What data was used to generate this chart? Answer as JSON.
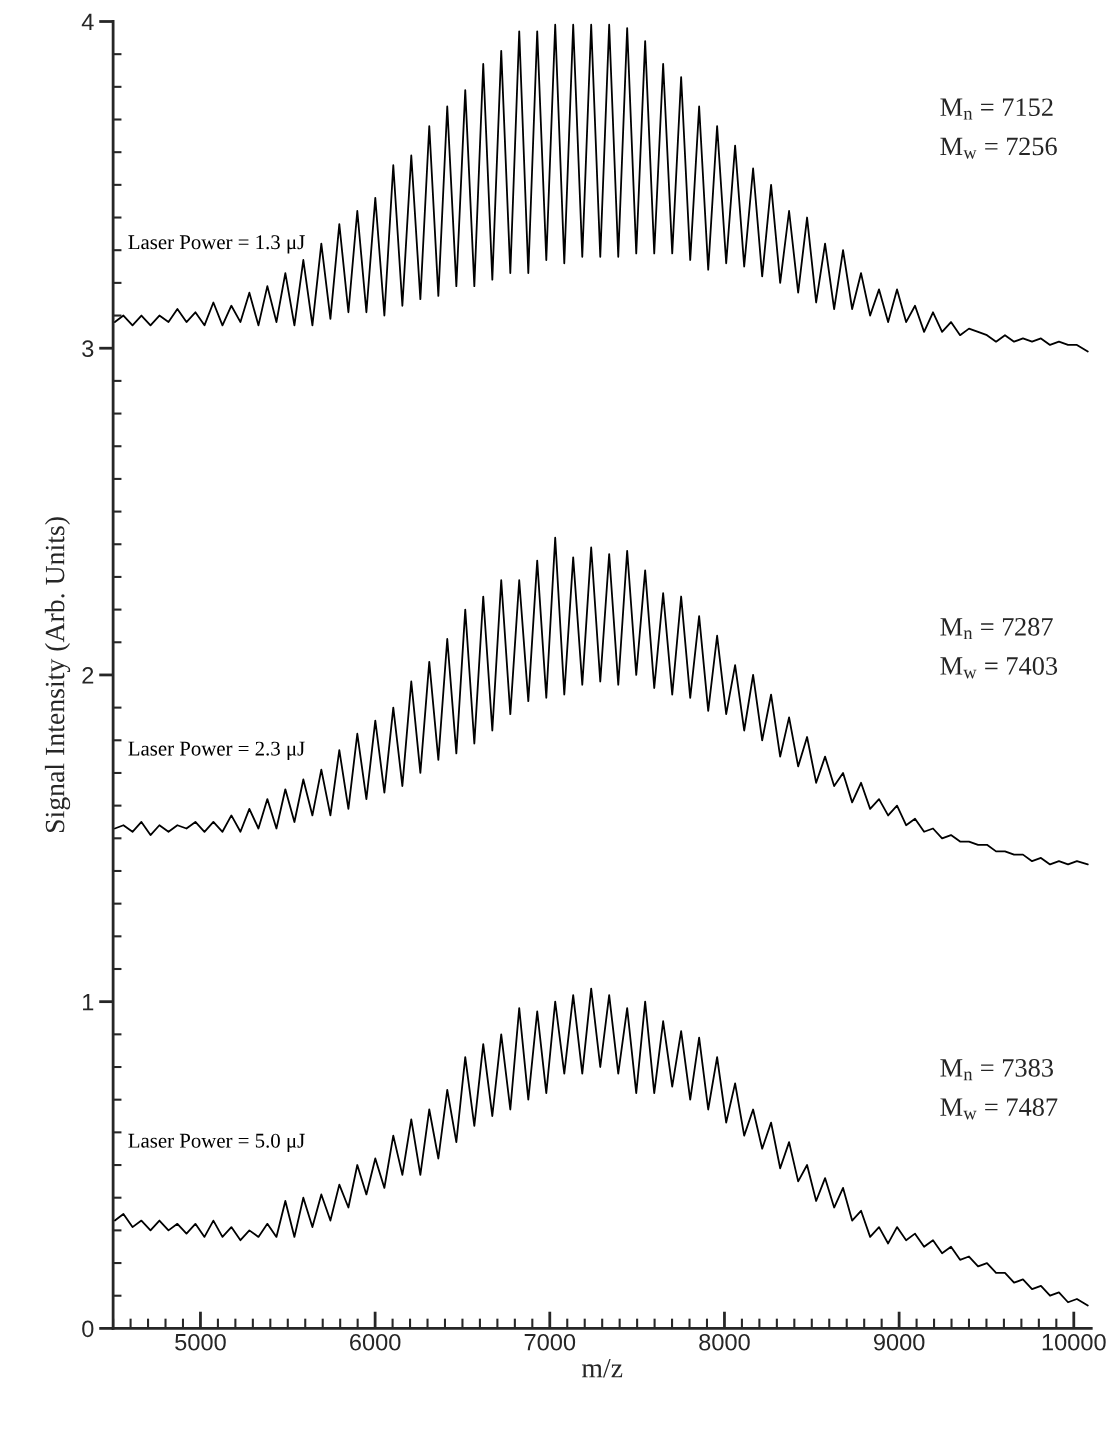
{
  "chart_data": {
    "type": "line",
    "xlabel": "m/z",
    "ylabel": "Signal Intensity (Arb. Units)",
    "x": [
      4510,
      4559,
      4611,
      4662,
      4714,
      4765,
      4817,
      4868,
      4920,
      4971,
      5023,
      5074,
      5126,
      5177,
      5229,
      5280,
      5332,
      5383,
      5435,
      5486,
      5538,
      5589,
      5641,
      5692,
      5744,
      5795,
      5847,
      5898,
      5950,
      6001,
      6053,
      6104,
      6156,
      6207,
      6259,
      6310,
      6362,
      6413,
      6465,
      6516,
      6568,
      6619,
      6671,
      6722,
      6774,
      6825,
      6877,
      6928,
      6980,
      7031,
      7083,
      7134,
      7186,
      7237,
      7289,
      7340,
      7392,
      7443,
      7495,
      7546,
      7598,
      7649,
      7701,
      7752,
      7804,
      7855,
      7907,
      7958,
      8010,
      8061,
      8113,
      8164,
      8216,
      8267,
      8319,
      8370,
      8422,
      8473,
      8525,
      8576,
      8628,
      8679,
      8731,
      8782,
      8834,
      8885,
      8937,
      8988,
      9040,
      9091,
      9143,
      9194,
      9246,
      9297,
      9349,
      9400,
      9452,
      9503,
      9555,
      9606,
      9658,
      9709,
      9761,
      9812,
      9864,
      9915,
      9967,
      10018,
      10080
    ],
    "series": [
      {
        "name": "Laser Power = 1.3 μJ",
        "color": "#000000",
        "values": [
          3.08,
          3.1,
          3.07,
          3.1,
          3.07,
          3.1,
          3.08,
          3.12,
          3.08,
          3.11,
          3.07,
          3.14,
          3.07,
          3.13,
          3.08,
          3.17,
          3.07,
          3.19,
          3.08,
          3.23,
          3.07,
          3.27,
          3.07,
          3.32,
          3.09,
          3.38,
          3.11,
          3.42,
          3.11,
          3.46,
          3.1,
          3.56,
          3.13,
          3.59,
          3.15,
          3.68,
          3.16,
          3.74,
          3.19,
          3.79,
          3.19,
          3.87,
          3.21,
          3.91,
          3.23,
          3.97,
          3.23,
          3.97,
          3.27,
          3.99,
          3.26,
          3.99,
          3.28,
          3.99,
          3.28,
          3.99,
          3.28,
          3.98,
          3.29,
          3.94,
          3.29,
          3.87,
          3.29,
          3.83,
          3.27,
          3.74,
          3.24,
          3.68,
          3.26,
          3.62,
          3.25,
          3.55,
          3.22,
          3.5,
          3.2,
          3.42,
          3.17,
          3.4,
          3.14,
          3.32,
          3.12,
          3.3,
          3.12,
          3.23,
          3.1,
          3.18,
          3.08,
          3.18,
          3.08,
          3.13,
          3.05,
          3.11,
          3.05,
          3.08,
          3.04,
          3.06,
          3.05,
          3.04,
          3.02,
          3.04,
          3.02,
          3.03,
          3.02,
          3.03,
          3.01,
          3.02,
          3.01,
          3.01,
          2.99
        ]
      },
      {
        "name": "Laser Power = 2.3 μJ",
        "color": "#000000",
        "values": [
          1.53,
          1.54,
          1.52,
          1.55,
          1.51,
          1.54,
          1.52,
          1.54,
          1.53,
          1.55,
          1.52,
          1.55,
          1.52,
          1.57,
          1.52,
          1.59,
          1.53,
          1.62,
          1.53,
          1.65,
          1.55,
          1.68,
          1.57,
          1.71,
          1.57,
          1.77,
          1.59,
          1.82,
          1.62,
          1.86,
          1.64,
          1.9,
          1.66,
          1.98,
          1.7,
          2.04,
          1.74,
          2.11,
          1.76,
          2.2,
          1.79,
          2.24,
          1.83,
          2.29,
          1.88,
          2.29,
          1.92,
          2.35,
          1.93,
          2.42,
          1.94,
          2.36,
          1.97,
          2.39,
          1.98,
          2.37,
          1.97,
          2.38,
          2.0,
          2.32,
          1.96,
          2.25,
          1.94,
          2.24,
          1.93,
          2.18,
          1.89,
          2.12,
          1.88,
          2.03,
          1.83,
          2.0,
          1.8,
          1.94,
          1.75,
          1.87,
          1.72,
          1.81,
          1.67,
          1.75,
          1.66,
          1.7,
          1.61,
          1.67,
          1.59,
          1.62,
          1.57,
          1.6,
          1.54,
          1.56,
          1.52,
          1.53,
          1.5,
          1.51,
          1.49,
          1.49,
          1.48,
          1.48,
          1.46,
          1.46,
          1.45,
          1.45,
          1.43,
          1.44,
          1.42,
          1.43,
          1.42,
          1.43,
          1.42
        ]
      },
      {
        "name": "Laser Power = 5.0 μJ",
        "color": "#000000",
        "values": [
          0.33,
          0.35,
          0.31,
          0.33,
          0.3,
          0.33,
          0.3,
          0.32,
          0.29,
          0.32,
          0.28,
          0.33,
          0.28,
          0.31,
          0.27,
          0.3,
          0.28,
          0.32,
          0.28,
          0.39,
          0.28,
          0.4,
          0.31,
          0.41,
          0.33,
          0.44,
          0.37,
          0.5,
          0.41,
          0.52,
          0.43,
          0.59,
          0.47,
          0.64,
          0.47,
          0.67,
          0.52,
          0.73,
          0.57,
          0.83,
          0.62,
          0.87,
          0.65,
          0.9,
          0.67,
          0.98,
          0.7,
          0.97,
          0.72,
          1.0,
          0.78,
          1.02,
          0.78,
          1.04,
          0.8,
          1.02,
          0.78,
          0.98,
          0.72,
          1.0,
          0.72,
          0.94,
          0.74,
          0.91,
          0.7,
          0.89,
          0.67,
          0.83,
          0.63,
          0.75,
          0.59,
          0.67,
          0.55,
          0.63,
          0.49,
          0.57,
          0.45,
          0.5,
          0.39,
          0.46,
          0.37,
          0.43,
          0.33,
          0.36,
          0.28,
          0.31,
          0.26,
          0.31,
          0.27,
          0.29,
          0.25,
          0.27,
          0.23,
          0.25,
          0.21,
          0.22,
          0.19,
          0.2,
          0.17,
          0.17,
          0.14,
          0.15,
          0.12,
          0.13,
          0.1,
          0.11,
          0.08,
          0.09,
          0.07
        ]
      }
    ],
    "annotations": [
      "M$_{n}$ = 7152",
      "M$_{w}$ = 7256",
      "M$_{n}$ = 7287",
      "M$_{w}$ = 7403",
      "M$_{n}$ = 7383",
      "M$_{w}$ = 7487"
    ],
    "xlim": [
      4500,
      10100
    ],
    "ylim": [
      0,
      4
    ],
    "xticks": [
      5000,
      6000,
      7000,
      8000,
      9000,
      10000,
      {
        "value": 4500,
        "label": null
      },
      {
        "value": 4600,
        "label": null
      },
      {
        "value": 4700,
        "label": null
      },
      {
        "value": 4800,
        "label": null
      },
      {
        "value": 4900,
        "label": null
      },
      {
        "value": 5100,
        "label": null
      },
      {
        "value": 5200,
        "label": null
      },
      {
        "value": 5300,
        "label": null
      },
      {
        "value": 5400,
        "label": null
      },
      {
        "value": 5500,
        "label": null
      },
      {
        "value": 5600,
        "label": null
      },
      {
        "value": 5700,
        "label": null
      },
      {
        "value": 5800,
        "label": null
      },
      {
        "value": 5900,
        "label": null
      },
      {
        "value": 6100,
        "label": null
      },
      {
        "value": 6200,
        "label": null
      },
      {
        "value": 6300,
        "label": null
      },
      {
        "value": 6400,
        "label": null
      },
      {
        "value": 6500,
        "label": null
      },
      {
        "value": 6600,
        "label": null
      },
      {
        "value": 6700,
        "label": null
      },
      {
        "value": 6800,
        "label": null
      },
      {
        "value": 6900,
        "label": null
      },
      {
        "value": 7100,
        "label": null
      },
      {
        "value": 7200,
        "label": null
      },
      {
        "value": 7300,
        "label": null
      },
      {
        "value": 7400,
        "label": null
      },
      {
        "value": 7500,
        "label": null
      },
      {
        "value": 7600,
        "label": null
      },
      {
        "value": 7700,
        "label": null
      },
      {
        "value": 7800,
        "label": null
      },
      {
        "value": 7900,
        "label": null
      },
      {
        "value": 8100,
        "label": null
      },
      {
        "value": 8200,
        "label": null
      },
      {
        "value": 8300,
        "label": null
      },
      {
        "value": 8400,
        "label": null
      },
      {
        "value": 8500,
        "label": null
      },
      {
        "value": 8600,
        "label": null
      },
      {
        "value": 8700,
        "label": null
      },
      {
        "value": 8800,
        "label": null
      },
      {
        "value": 8900,
        "label": null
      },
      {
        "value": 9100,
        "label": null
      },
      {
        "value": 9200,
        "label": null
      },
      {
        "value": 9300,
        "label": null
      },
      {
        "value": 9400,
        "label": null
      },
      {
        "value": 9500,
        "label": null
      },
      {
        "value": 9600,
        "label": null
      },
      {
        "value": 9700,
        "label": null
      },
      {
        "value": 9800,
        "label": null
      },
      {
        "value": 9900,
        "label": null
      }
    ],
    "yticks": [
      0,
      1,
      2,
      3,
      4,
      {
        "value": 0.1,
        "label": null
      },
      {
        "value": 0.2,
        "label": null
      },
      {
        "value": 0.3,
        "label": null
      },
      {
        "value": 0.4,
        "label": null
      },
      {
        "value": 0.5,
        "label": null
      },
      {
        "value": 0.6,
        "label": null
      },
      {
        "value": 0.7,
        "label": null
      },
      {
        "value": 0.8,
        "label": null
      },
      {
        "value": 0.9,
        "label": null
      },
      {
        "value": 1.1,
        "label": null
      },
      {
        "value": 1.2,
        "label": null
      },
      {
        "value": 1.3,
        "label": null
      },
      {
        "value": 1.4,
        "label": null
      },
      {
        "value": 1.5,
        "label": null
      },
      {
        "value": 1.6,
        "label": null
      },
      {
        "value": 1.7,
        "label": null
      },
      {
        "value": 1.8,
        "label": null
      },
      {
        "value": 1.9,
        "label": null
      },
      {
        "value": 2.1,
        "label": null
      },
      {
        "value": 2.2,
        "label": null
      },
      {
        "value": 2.3,
        "label": null
      },
      {
        "value": 2.4,
        "label": null
      },
      {
        "value": 2.5,
        "label": null
      },
      {
        "value": 2.6,
        "label": null
      },
      {
        "value": 2.7,
        "label": null
      },
      {
        "value": 2.8,
        "label": null
      },
      {
        "value": 2.9,
        "label": null
      },
      {
        "value": 3.1,
        "label": null
      },
      {
        "value": 3.2,
        "label": null
      },
      {
        "value": 3.3,
        "label": null
      },
      {
        "value": 3.4,
        "label": null
      },
      {
        "value": 3.5,
        "label": null
      },
      {
        "value": 3.6,
        "label": null
      },
      {
        "value": 3.7,
        "label": null
      },
      {
        "value": 3.8,
        "label": null
      },
      {
        "value": 3.9,
        "label": null
      }
    ],
    "grid": false,
    "legend": false,
    "marker": "none",
    "line_style": "solid"
  }
}
